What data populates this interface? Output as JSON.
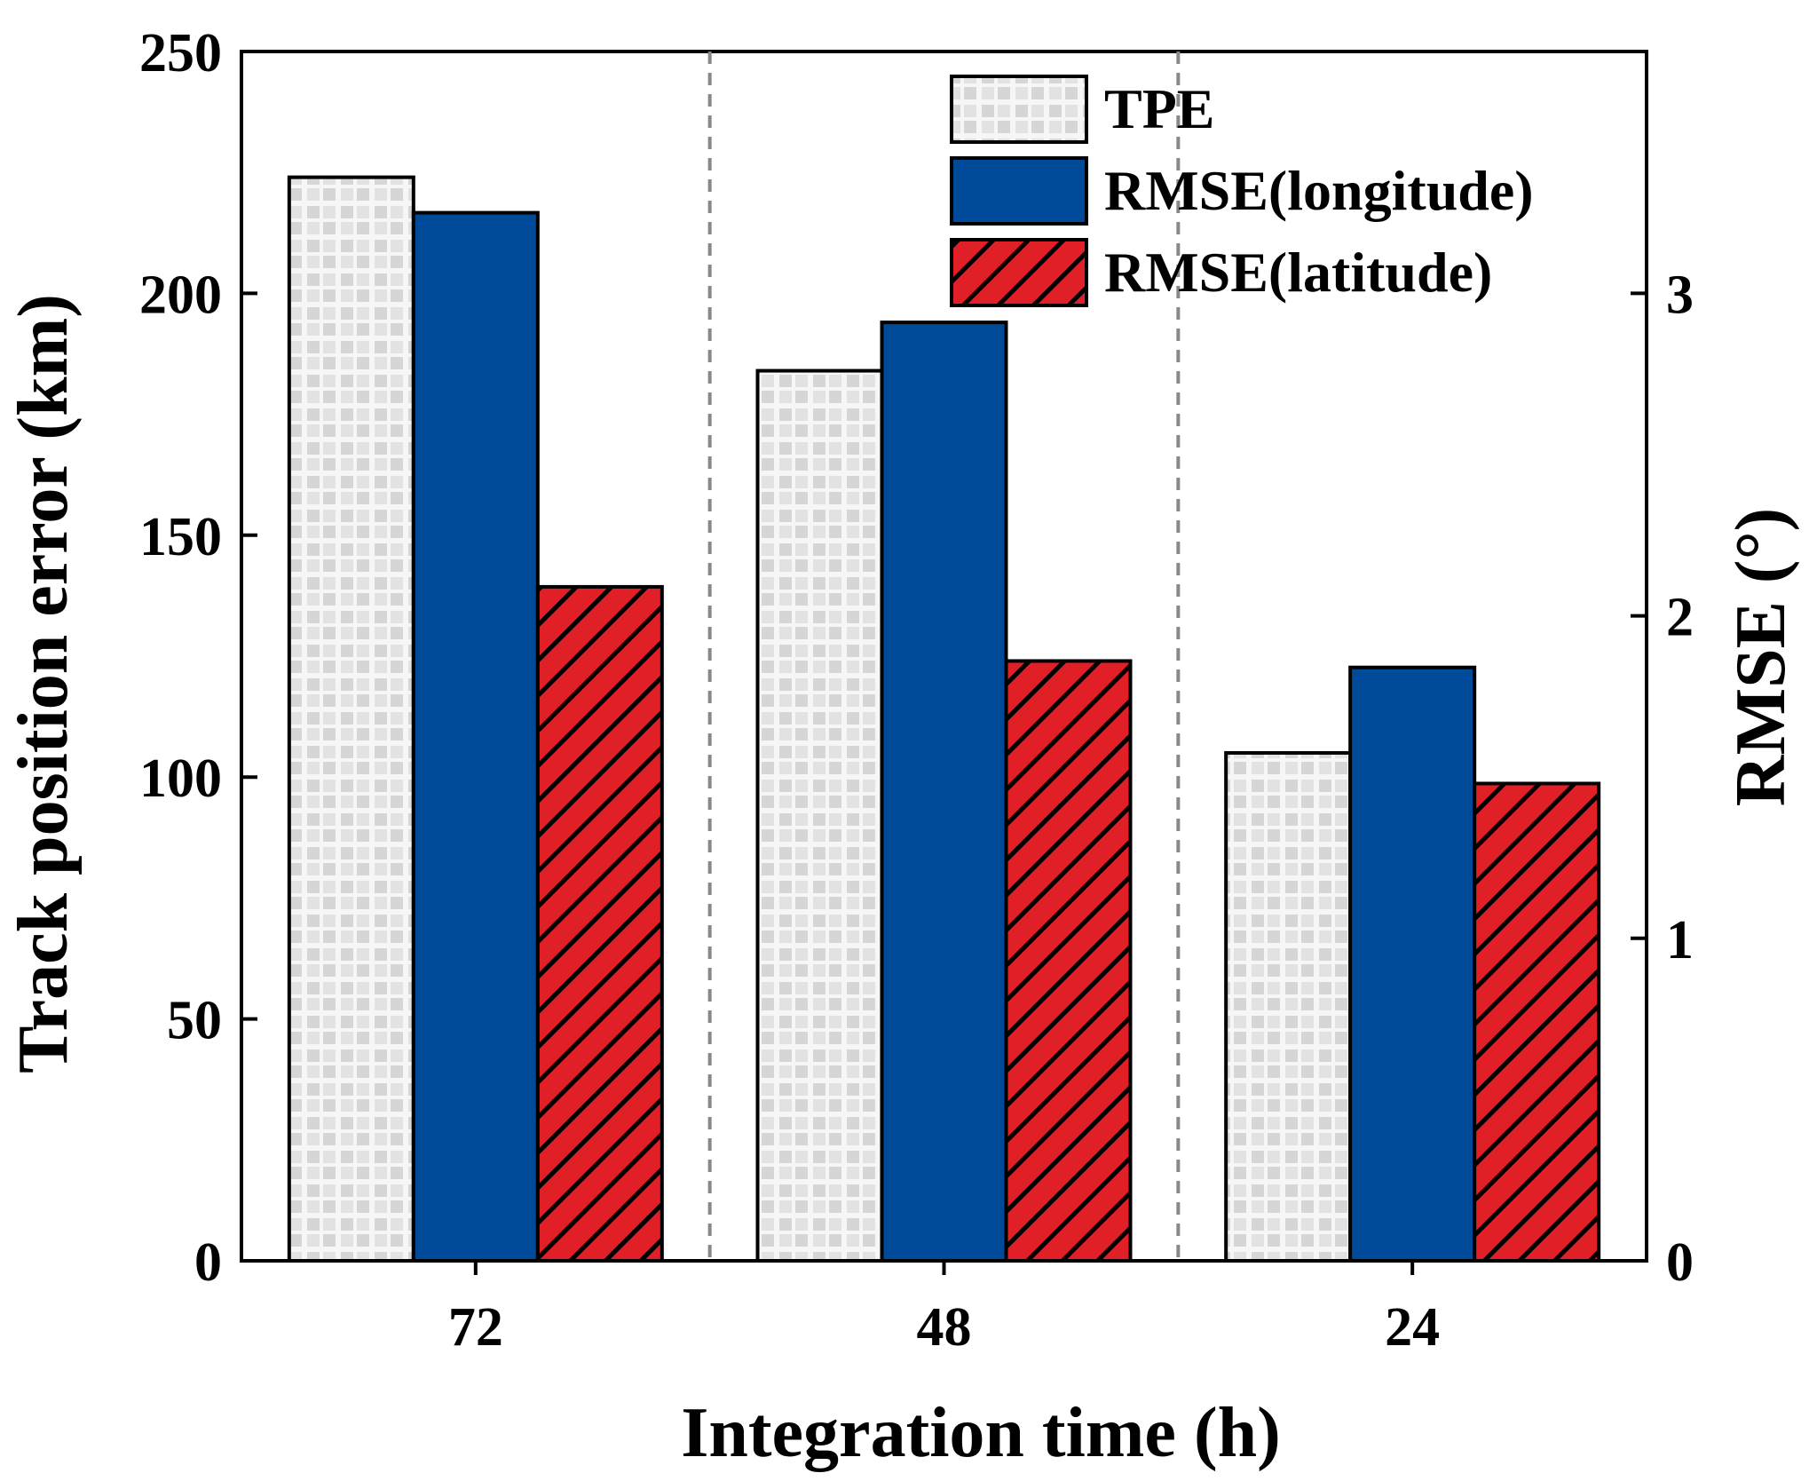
{
  "chart_data": {
    "type": "bar",
    "title": "",
    "categories": [
      "72",
      "48",
      "24"
    ],
    "xlabel": "Integration time (h)",
    "ylabel": "Track position error (km)",
    "y2label": "RMSE (°)",
    "ylim": [
      0,
      250
    ],
    "y2lim": [
      0,
      3.75
    ],
    "yticks": [
      0,
      50,
      100,
      150,
      200,
      250
    ],
    "y2ticks": [
      0,
      1,
      2,
      3
    ],
    "y_tick_labels": [
      "0",
      "50",
      "100",
      "150",
      "200",
      "250"
    ],
    "y2_tick_labels": [
      "0",
      "1",
      "2",
      "3"
    ],
    "grid": false,
    "legend_position": "top-right",
    "series": [
      {
        "name": "TPE",
        "axis": "left",
        "values": [
          224,
          184,
          105
        ],
        "color": "#f0f0f0",
        "pattern": "checker"
      },
      {
        "name": "RMSE(longitude)",
        "axis": "right",
        "values": [
          3.25,
          2.91,
          1.84
        ],
        "color": "#004a9a",
        "pattern": "solid"
      },
      {
        "name": "RMSE(latitude)",
        "axis": "right",
        "values": [
          2.09,
          1.86,
          1.48
        ],
        "color": "#e01f26",
        "pattern": "hatch"
      }
    ]
  }
}
